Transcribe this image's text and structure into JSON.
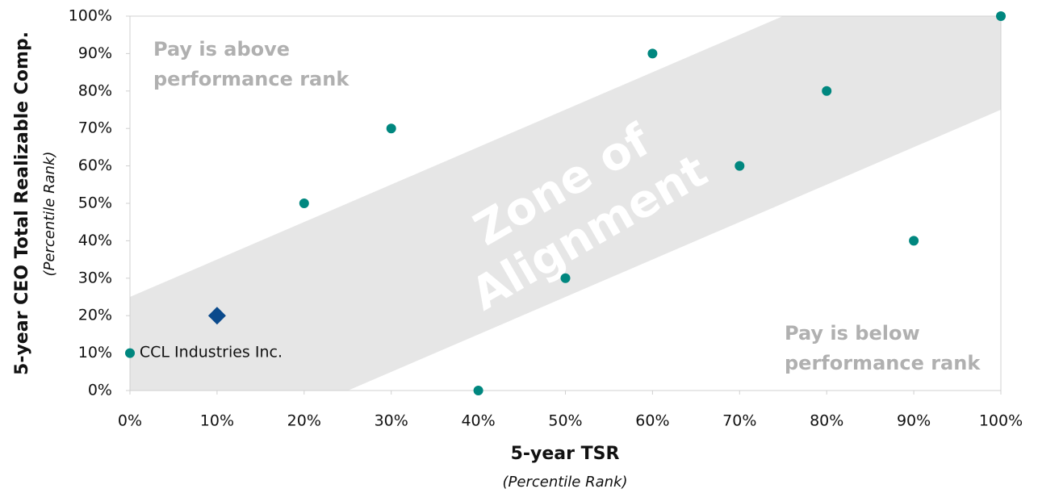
{
  "chart_data": {
    "type": "scatter",
    "x_label": "5-year TSR",
    "x_sublabel": "(Percentile Rank)",
    "y_label": "5-year CEO Total Realizable Comp.",
    "y_sublabel": "(Percentile Rank)",
    "xlim": [
      0,
      100
    ],
    "ylim": [
      0,
      100
    ],
    "xticks": [
      {
        "value": 0,
        "label": "0%"
      },
      {
        "value": 10,
        "label": "10%"
      },
      {
        "value": 20,
        "label": "20%"
      },
      {
        "value": 30,
        "label": "30%"
      },
      {
        "value": 40,
        "label": "40%"
      },
      {
        "value": 50,
        "label": "50%"
      },
      {
        "value": 60,
        "label": "60%"
      },
      {
        "value": 70,
        "label": "70%"
      },
      {
        "value": 80,
        "label": "80%"
      },
      {
        "value": 90,
        "label": "90%"
      },
      {
        "value": 100,
        "label": "100%"
      }
    ],
    "yticks": [
      {
        "value": 0,
        "label": "0%"
      },
      {
        "value": 10,
        "label": "10%"
      },
      {
        "value": 20,
        "label": "20%"
      },
      {
        "value": 30,
        "label": "30%"
      },
      {
        "value": 40,
        "label": "40%"
      },
      {
        "value": 50,
        "label": "50%"
      },
      {
        "value": 60,
        "label": "60%"
      },
      {
        "value": 70,
        "label": "70%"
      },
      {
        "value": 80,
        "label": "80%"
      },
      {
        "value": 90,
        "label": "90%"
      },
      {
        "value": 100,
        "label": "100%"
      }
    ],
    "series": [
      {
        "color": "#00877f",
        "marker": "circle",
        "x": [
          0,
          20,
          30,
          40,
          50,
          60,
          70,
          80,
          90,
          100
        ],
        "values": [
          10,
          50,
          70,
          0,
          30,
          90,
          60,
          80,
          40,
          100
        ]
      },
      {
        "name": "CCL Industries Inc.",
        "color": "#0b4a8c",
        "marker": "diamond",
        "x": [
          10
        ],
        "values": [
          20
        ]
      }
    ],
    "zone_label": [
      "Zone of",
      "Alignment"
    ],
    "above_label": [
      "Pay is above",
      "performance rank"
    ],
    "below_label": [
      "Pay is below",
      "performance rank"
    ]
  }
}
